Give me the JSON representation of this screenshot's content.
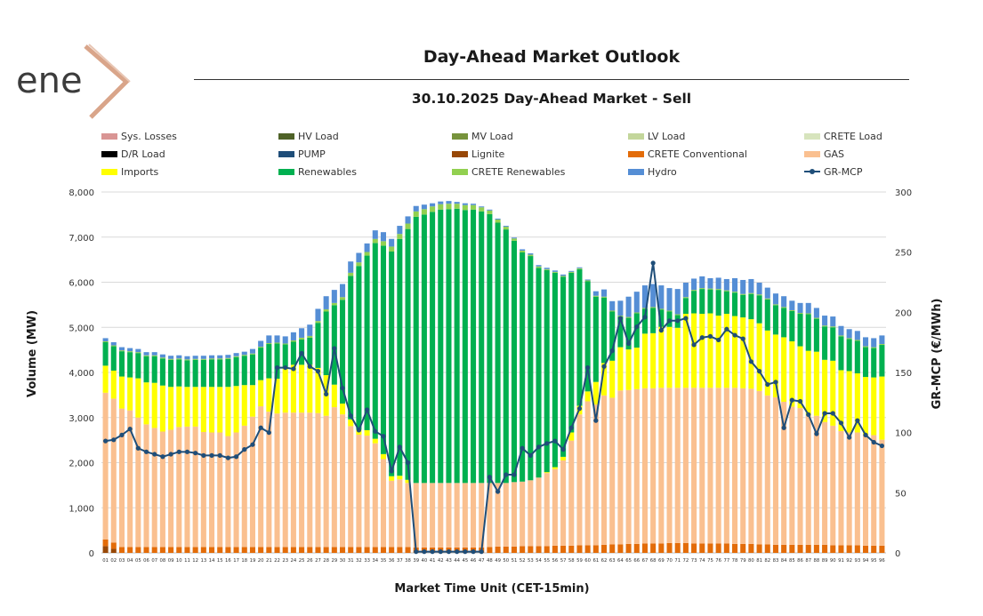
{
  "logo": {
    "text": "ene",
    "colors": {
      "text": "#3c3c3c",
      "x": "#d9a58a"
    }
  },
  "header": {
    "title": "Day-Ahead Market Outlook",
    "subtitle": "30.10.2025  Day-Ahead Market - Sell"
  },
  "legend": [
    {
      "label": "Sys. Losses",
      "color": "#d99594",
      "kind": "box"
    },
    {
      "label": "HV Load",
      "color": "#4f6228",
      "kind": "box"
    },
    {
      "label": "MV Load",
      "color": "#77933c",
      "kind": "box"
    },
    {
      "label": "LV Load",
      "color": "#c3d69b",
      "kind": "box"
    },
    {
      "label": "CRETE Load",
      "color": "#d7e4bd",
      "kind": "box"
    },
    {
      "label": "D/R Load",
      "color": "#000000",
      "kind": "box"
    },
    {
      "label": "PUMP",
      "color": "#1f4e79",
      "kind": "box"
    },
    {
      "label": "Lignite",
      "color": "#984807",
      "kind": "box"
    },
    {
      "label": "CRETE Conventional",
      "color": "#e36c09",
      "kind": "box"
    },
    {
      "label": "GAS",
      "color": "#fac090",
      "kind": "box"
    },
    {
      "label": "Imports",
      "color": "#ffff00",
      "kind": "box"
    },
    {
      "label": "Renewables",
      "color": "#00b050",
      "kind": "box"
    },
    {
      "label": "CRETE Renewables",
      "color": "#92d050",
      "kind": "box"
    },
    {
      "label": "Hydro",
      "color": "#558ed5",
      "kind": "box"
    },
    {
      "label": "GR-MCP",
      "color": "#1f4e79",
      "kind": "line"
    }
  ],
  "chart_data": {
    "type": "bar",
    "stacked": true,
    "xlabel": "Market Time Unit (CET-15min)",
    "ylabel": "Volume (MW)",
    "y2label": "GR-MCP (€/MWh)",
    "ylim": [
      0,
      8000
    ],
    "y2lim": [
      0,
      300
    ],
    "yticks": [
      "0",
      "1,000",
      "2,000",
      "3,000",
      "4,000",
      "5,000",
      "6,000",
      "7,000",
      "8,000"
    ],
    "y2ticks": [
      "0",
      "50",
      "100",
      "150",
      "200",
      "250",
      "300"
    ],
    "categories": [
      "01",
      "02",
      "03",
      "04",
      "05",
      "06",
      "07",
      "08",
      "09",
      "10",
      "11",
      "12",
      "13",
      "14",
      "15",
      "16",
      "17",
      "18",
      "19",
      "20",
      "21",
      "22",
      "23",
      "24",
      "25",
      "26",
      "27",
      "28",
      "29",
      "30",
      "31",
      "32",
      "33",
      "34",
      "35",
      "36",
      "37",
      "38",
      "39",
      "40",
      "41",
      "42",
      "43",
      "44",
      "45",
      "46",
      "47",
      "48",
      "49",
      "50",
      "51",
      "52",
      "53",
      "54",
      "55",
      "56",
      "57",
      "58",
      "59",
      "60",
      "61",
      "62",
      "63",
      "64",
      "65",
      "66",
      "67",
      "68",
      "69",
      "70",
      "71",
      "72",
      "73",
      "74",
      "75",
      "76",
      "77",
      "78",
      "79",
      "80",
      "81",
      "82",
      "83",
      "84",
      "85",
      "86",
      "87",
      "88",
      "89",
      "90",
      "91",
      "92",
      "93",
      "94",
      "95",
      "96"
    ],
    "series": [
      {
        "name": "Lignite",
        "color": "#984807",
        "values": [
          150,
          90,
          0,
          0,
          0,
          0,
          0,
          0,
          0,
          0,
          0,
          0,
          0,
          0,
          0,
          0,
          0,
          0,
          0,
          0,
          0,
          0,
          0,
          0,
          0,
          0,
          0,
          0,
          0,
          0,
          0,
          0,
          0,
          0,
          0,
          0,
          0,
          0,
          0,
          0,
          0,
          0,
          0,
          0,
          0,
          0,
          0,
          0,
          0,
          0,
          0,
          0,
          0,
          0,
          0,
          0,
          0,
          0,
          0,
          0,
          0,
          0,
          0,
          0,
          0,
          0,
          0,
          0,
          0,
          0,
          0,
          0,
          0,
          0,
          0,
          0,
          0,
          0,
          0,
          0,
          0,
          0,
          0,
          0,
          0,
          0,
          0,
          0,
          0,
          0,
          0,
          0,
          0,
          0,
          0,
          0
        ]
      },
      {
        "name": "CRETE Conventional",
        "color": "#e36c09",
        "values": [
          150,
          140,
          130,
          130,
          130,
          130,
          130,
          130,
          130,
          130,
          130,
          130,
          130,
          130,
          130,
          130,
          130,
          130,
          130,
          130,
          130,
          130,
          130,
          130,
          130,
          130,
          130,
          130,
          130,
          130,
          130,
          130,
          130,
          130,
          130,
          130,
          130,
          130,
          120,
          120,
          120,
          120,
          120,
          120,
          120,
          120,
          120,
          130,
          140,
          140,
          140,
          150,
          150,
          150,
          150,
          160,
          160,
          160,
          170,
          170,
          170,
          180,
          190,
          190,
          200,
          200,
          210,
          210,
          210,
          220,
          220,
          220,
          210,
          210,
          210,
          210,
          210,
          200,
          200,
          200,
          190,
          190,
          180,
          180,
          180,
          180,
          180,
          180,
          180,
          170,
          170,
          170,
          170,
          160,
          160,
          160
        ]
      },
      {
        "name": "GAS",
        "color": "#fac090",
        "values": [
          3250,
          3190,
          3070,
          3030,
          2870,
          2720,
          2640,
          2560,
          2600,
          2660,
          2670,
          2670,
          2550,
          2540,
          2540,
          2460,
          2540,
          2690,
          2890,
          3120,
          3000,
          2960,
          2980,
          2980,
          2980,
          2980,
          2970,
          2910,
          3100,
          2940,
          2680,
          2490,
          2470,
          2300,
          1950,
          1470,
          1500,
          1420,
          1430,
          1430,
          1430,
          1430,
          1430,
          1430,
          1430,
          1430,
          1430,
          1420,
          1410,
          1410,
          1430,
          1430,
          1460,
          1520,
          1620,
          1700,
          1890,
          2330,
          2900,
          3190,
          3120,
          3310,
          3250,
          3410,
          3410,
          3430,
          3440,
          3440,
          3450,
          3440,
          3440,
          3440,
          3450,
          3450,
          3450,
          3450,
          3450,
          3460,
          3450,
          3440,
          3400,
          3300,
          3270,
          3170,
          3060,
          3030,
          2870,
          2860,
          2720,
          2650,
          2530,
          2500,
          2500,
          2460,
          2450,
          2350
        ]
      },
      {
        "name": "Imports",
        "color": "#ffff00",
        "values": [
          600,
          620,
          710,
          730,
          870,
          930,
          1000,
          1020,
          950,
          900,
          880,
          880,
          1000,
          1010,
          1010,
          1090,
          1030,
          900,
          700,
          580,
          740,
          770,
          1010,
          1060,
          1060,
          1060,
          1000,
          900,
          500,
          240,
          150,
          110,
          120,
          100,
          110,
          100,
          80,
          70,
          0,
          0,
          0,
          0,
          0,
          0,
          0,
          0,
          0,
          0,
          0,
          0,
          0,
          0,
          0,
          0,
          20,
          40,
          80,
          180,
          190,
          220,
          500,
          720,
          820,
          960,
          900,
          920,
          1210,
          1220,
          1350,
          1350,
          1330,
          1640,
          1650,
          1640,
          1650,
          1600,
          1640,
          1590,
          1570,
          1540,
          1500,
          1440,
          1390,
          1430,
          1450,
          1370,
          1430,
          1420,
          1380,
          1440,
          1350,
          1360,
          1310,
          1280,
          1280,
          1400
        ]
      },
      {
        "name": "Renewables",
        "color": "#00b050",
        "values": [
          520,
          540,
          560,
          560,
          560,
          580,
          590,
          600,
          600,
          600,
          590,
          600,
          600,
          610,
          610,
          620,
          640,
          650,
          680,
          720,
          760,
          780,
          500,
          510,
          560,
          600,
          1000,
          1410,
          1760,
          2300,
          3180,
          3630,
          3870,
          4340,
          4620,
          4980,
          5250,
          5560,
          5900,
          5950,
          6010,
          6060,
          6070,
          6080,
          6050,
          6060,
          6020,
          5960,
          5770,
          5620,
          5350,
          5080,
          4970,
          4650,
          4480,
          4310,
          3990,
          3540,
          3030,
          2440,
          1890,
          1450,
          1090,
          680,
          700,
          760,
          550,
          560,
          380,
          340,
          280,
          350,
          500,
          550,
          530,
          570,
          500,
          520,
          500,
          560,
          620,
          690,
          650,
          650,
          670,
          720,
          810,
          730,
          740,
          740,
          750,
          710,
          720,
          660,
          650,
          700
        ]
      },
      {
        "name": "CRETE Renewables",
        "color": "#92d050",
        "values": [
          20,
          20,
          20,
          20,
          20,
          20,
          20,
          20,
          20,
          20,
          20,
          20,
          20,
          20,
          20,
          20,
          20,
          20,
          20,
          20,
          20,
          20,
          20,
          30,
          40,
          40,
          40,
          50,
          50,
          60,
          70,
          80,
          80,
          90,
          100,
          110,
          110,
          120,
          120,
          120,
          120,
          120,
          120,
          110,
          110,
          100,
          90,
          80,
          70,
          60,
          50,
          40,
          30,
          30,
          20,
          20,
          20,
          20,
          20,
          20,
          20,
          20,
          20,
          20,
          20,
          20,
          20,
          20,
          20,
          20,
          20,
          20,
          20,
          20,
          20,
          20,
          20,
          20,
          20,
          20,
          20,
          20,
          20,
          20,
          20,
          20,
          20,
          20,
          20,
          20,
          20,
          20,
          20,
          20,
          20,
          20
        ]
      },
      {
        "name": "Hydro",
        "color": "#558ed5",
        "values": [
          70,
          70,
          70,
          70,
          70,
          70,
          70,
          70,
          70,
          70,
          70,
          70,
          70,
          70,
          70,
          70,
          70,
          70,
          100,
          130,
          170,
          160,
          160,
          180,
          210,
          250,
          270,
          290,
          290,
          290,
          250,
          210,
          190,
          190,
          200,
          170,
          180,
          160,
          120,
          100,
          70,
          60,
          60,
          40,
          40,
          30,
          20,
          20,
          20,
          20,
          20,
          30,
          30,
          30,
          30,
          30,
          30,
          20,
          20,
          20,
          100,
          160,
          210,
          330,
          450,
          460,
          500,
          510,
          520,
          500,
          560,
          320,
          250,
          260,
          230,
          250,
          250,
          300,
          310,
          310,
          260,
          240,
          240,
          240,
          210,
          220,
          230,
          220,
          220,
          220,
          210,
          200,
          200,
          200,
          200,
          190
        ]
      }
    ],
    "mcp": [
      93,
      94,
      98,
      103,
      87,
      84,
      82,
      80,
      82,
      84,
      84,
      83,
      81,
      81,
      81,
      79,
      80,
      86,
      90,
      104,
      100,
      154,
      154,
      153,
      166,
      155,
      151,
      132,
      170,
      137,
      114,
      102,
      119,
      101,
      97,
      68,
      88,
      75,
      1,
      1,
      1,
      1,
      1,
      1,
      1,
      1,
      1,
      63,
      51,
      65,
      65,
      87,
      81,
      88,
      91,
      93,
      86,
      104,
      120,
      154,
      110,
      155,
      168,
      195,
      174,
      188,
      196,
      241,
      185,
      193,
      193,
      195,
      173,
      179,
      180,
      177,
      186,
      181,
      178,
      159,
      151,
      140,
      142,
      104,
      127,
      126,
      115,
      99,
      116,
      116,
      108,
      96,
      110,
      98,
      92,
      89
    ]
  }
}
